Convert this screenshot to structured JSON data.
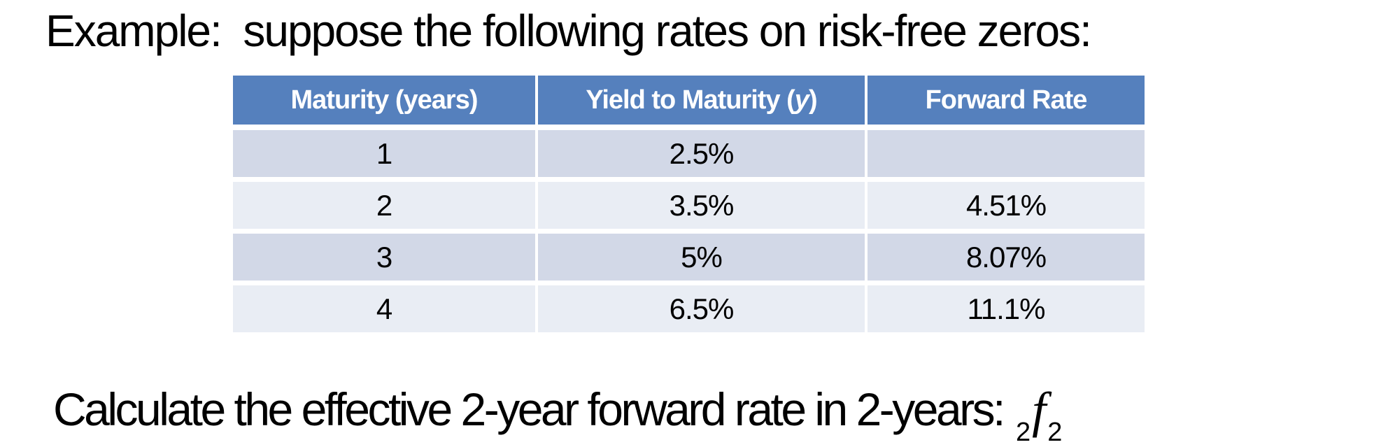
{
  "slide": {
    "title": "Example:  suppose the following rates on risk-free zeros:",
    "table": {
      "headers": {
        "maturity": "Maturity (years)",
        "ytm_prefix": "Yield to Maturity (",
        "ytm_symbol": "y",
        "ytm_suffix": ")",
        "forward_rate": "Forward Rate"
      },
      "rows": [
        {
          "maturity": "1",
          "ytm": "2.5%",
          "forward": ""
        },
        {
          "maturity": "2",
          "ytm": "3.5%",
          "forward": "4.51%"
        },
        {
          "maturity": "3",
          "ytm": "5%",
          "forward": "8.07%"
        },
        {
          "maturity": "4",
          "ytm": "6.5%",
          "forward": "11.1%"
        }
      ]
    },
    "question": {
      "text": "Calculate the effective 2-year forward rate in 2-years:",
      "notation_pre_subscript": "2",
      "notation_symbol": "f",
      "notation_post_subscript": "2"
    },
    "colors": {
      "header_bg": "#5580BD",
      "row_band_dark": "#D2D8E7",
      "row_band_light": "#E9EDF4",
      "header_text": "#FFFFFF",
      "body_text": "#000000",
      "background": "#FFFFFF"
    }
  }
}
